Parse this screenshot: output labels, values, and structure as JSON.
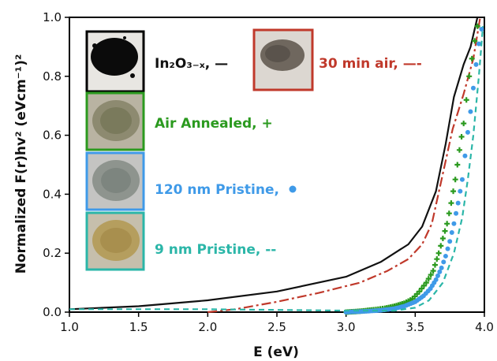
{
  "chart_data": {
    "type": "line",
    "xlabel": "E (eV)",
    "ylabel": "Normalized F(r)hv² (eVcm⁻¹)²",
    "xlim": [
      1.0,
      4.0
    ],
    "ylim": [
      0.0,
      1.0
    ],
    "x_ticks": [
      "1.0",
      "1.5",
      "2.0",
      "2.5",
      "3.0",
      "3.5",
      "4.0"
    ],
    "y_ticks": [
      "0.0",
      "0.2",
      "0.4",
      "0.6",
      "0.8",
      "1.0"
    ],
    "grid": false,
    "series": [
      {
        "name": "In2O3-x",
        "legend_label": "In₂O₃₋ₓ, —",
        "color": "#111111",
        "style": "solid",
        "points": [
          [
            1.0,
            0.01
          ],
          [
            1.5,
            0.02
          ],
          [
            2.0,
            0.04
          ],
          [
            2.5,
            0.07
          ],
          [
            3.0,
            0.12
          ],
          [
            3.25,
            0.17
          ],
          [
            3.45,
            0.23
          ],
          [
            3.55,
            0.29
          ],
          [
            3.65,
            0.41
          ],
          [
            3.72,
            0.57
          ],
          [
            3.78,
            0.73
          ],
          [
            3.85,
            0.84
          ],
          [
            3.9,
            0.9
          ],
          [
            3.95,
            1.0
          ]
        ]
      },
      {
        "name": "30 min air",
        "legend_label": "30 min air, —-",
        "color": "#c0392b",
        "style": "dashdot",
        "points": [
          [
            2.0,
            0.0
          ],
          [
            2.2,
            0.01
          ],
          [
            2.5,
            0.035
          ],
          [
            2.8,
            0.065
          ],
          [
            3.1,
            0.1
          ],
          [
            3.3,
            0.14
          ],
          [
            3.45,
            0.18
          ],
          [
            3.55,
            0.23
          ],
          [
            3.62,
            0.3
          ],
          [
            3.7,
            0.47
          ],
          [
            3.77,
            0.62
          ],
          [
            3.85,
            0.74
          ],
          [
            3.92,
            0.86
          ],
          [
            3.97,
            1.0
          ]
        ]
      },
      {
        "name": "Air Annealed",
        "legend_label": "Air Annealed, +",
        "color": "#2b9a1f",
        "style": "marker-plus",
        "points": [
          [
            3.0,
            0.0
          ],
          [
            3.1,
            0.003
          ],
          [
            3.2,
            0.008
          ],
          [
            3.28,
            0.013
          ],
          [
            3.35,
            0.02
          ],
          [
            3.42,
            0.03
          ],
          [
            3.48,
            0.045
          ],
          [
            3.53,
            0.07
          ],
          [
            3.58,
            0.1
          ],
          [
            3.63,
            0.14
          ],
          [
            3.67,
            0.2
          ],
          [
            3.7,
            0.25
          ],
          [
            3.73,
            0.3
          ],
          [
            3.76,
            0.37
          ],
          [
            3.79,
            0.45
          ],
          [
            3.82,
            0.55
          ],
          [
            3.85,
            0.64
          ],
          [
            3.87,
            0.72
          ],
          [
            3.89,
            0.8
          ],
          [
            3.91,
            0.86
          ],
          [
            3.93,
            0.92
          ],
          [
            3.95,
            0.97
          ]
        ]
      },
      {
        "name": "120 nm Pristine",
        "legend_label": "120 nm Pristine,",
        "color": "#3f9ae8",
        "style": "marker-dot",
        "points": [
          [
            3.0,
            0.0
          ],
          [
            3.15,
            0.003
          ],
          [
            3.25,
            0.006
          ],
          [
            3.35,
            0.012
          ],
          [
            3.42,
            0.02
          ],
          [
            3.5,
            0.035
          ],
          [
            3.56,
            0.055
          ],
          [
            3.61,
            0.08
          ],
          [
            3.65,
            0.11
          ],
          [
            3.69,
            0.15
          ],
          [
            3.72,
            0.19
          ],
          [
            3.75,
            0.24
          ],
          [
            3.78,
            0.3
          ],
          [
            3.81,
            0.37
          ],
          [
            3.84,
            0.45
          ],
          [
            3.86,
            0.53
          ],
          [
            3.88,
            0.61
          ],
          [
            3.9,
            0.68
          ],
          [
            3.92,
            0.76
          ],
          [
            3.94,
            0.84
          ],
          [
            3.96,
            0.91
          ],
          [
            3.98,
            0.96
          ]
        ]
      },
      {
        "name": "9 nm Pristine",
        "legend_label": "9 nm Pristine, --",
        "color": "#2bb6a8",
        "style": "dashed",
        "points": [
          [
            1.0,
            0.01
          ],
          [
            2.0,
            0.01
          ],
          [
            3.0,
            0.005
          ],
          [
            3.35,
            0.005
          ],
          [
            3.5,
            0.015
          ],
          [
            3.6,
            0.04
          ],
          [
            3.7,
            0.1
          ],
          [
            3.78,
            0.2
          ],
          [
            3.84,
            0.32
          ],
          [
            3.88,
            0.45
          ],
          [
            3.92,
            0.6
          ],
          [
            3.96,
            0.8
          ],
          [
            3.99,
            0.97
          ]
        ]
      }
    ]
  }
}
